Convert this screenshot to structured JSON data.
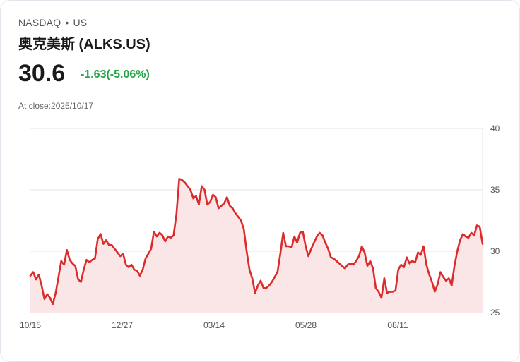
{
  "header": {
    "exchange": "NASDAQ",
    "separator": "•",
    "market": "US",
    "title": "奥克美斯 (ALKS.US)",
    "price": "30.6",
    "change": "-1.63(-5.06%)",
    "close_label": "At close:2025/10/17"
  },
  "colors": {
    "line": "#dd2a2a",
    "fill": "#fbe6e7",
    "change": "#22a447",
    "grid": "#e5e5e5"
  },
  "chart_data": {
    "type": "area",
    "title": "奥克美斯 (ALKS.US)",
    "xlabel": "",
    "ylabel": "",
    "ylim": [
      25,
      40
    ],
    "yticks": [
      25,
      30,
      35,
      40
    ],
    "xticks": [
      "10/15",
      "12/27",
      "03/14",
      "05/28",
      "08/11"
    ],
    "grid": true,
    "y_axis_position": "right",
    "values": [
      28.0,
      28.3,
      27.7,
      28.1,
      27.2,
      26.1,
      26.5,
      26.2,
      25.7,
      26.6,
      27.9,
      29.2,
      28.9,
      30.1,
      29.3,
      29.0,
      28.8,
      27.7,
      27.5,
      28.5,
      29.3,
      29.1,
      29.3,
      29.4,
      31.0,
      31.4,
      30.6,
      30.9,
      30.5,
      30.5,
      30.2,
      29.9,
      29.6,
      29.8,
      28.9,
      28.7,
      28.9,
      28.5,
      28.4,
      28.0,
      28.5,
      29.4,
      29.8,
      30.2,
      31.6,
      31.2,
      31.5,
      31.3,
      30.8,
      31.2,
      31.1,
      31.3,
      33.0,
      35.9,
      35.8,
      35.6,
      35.3,
      35.0,
      34.3,
      34.5,
      33.8,
      35.3,
      35.0,
      33.8,
      34.0,
      34.6,
      34.4,
      33.5,
      33.7,
      33.9,
      34.4,
      33.7,
      33.5,
      33.1,
      32.8,
      32.5,
      31.8,
      30.0,
      28.5,
      27.8,
      26.6,
      27.2,
      27.6,
      27.0,
      27.0,
      27.2,
      27.5,
      27.9,
      28.3,
      29.8,
      31.5,
      30.4,
      30.4,
      30.3,
      31.2,
      30.7,
      31.5,
      31.6,
      30.4,
      29.6,
      30.2,
      30.7,
      31.2,
      31.5,
      31.3,
      30.7,
      30.2,
      29.5,
      29.4,
      29.2,
      29.0,
      28.8,
      28.6,
      28.9,
      29.0,
      28.9,
      29.2,
      29.6,
      30.4,
      29.9,
      28.8,
      29.2,
      28.6,
      27.0,
      26.7,
      26.2,
      27.8,
      26.6,
      26.7,
      26.7,
      26.8,
      28.5,
      28.9,
      28.7,
      29.5,
      29.0,
      29.2,
      29.1,
      29.9,
      29.7,
      30.4,
      28.9,
      28.1,
      27.5,
      26.7,
      27.3,
      28.3,
      27.9,
      27.6,
      27.8,
      27.2,
      28.8,
      30.0,
      30.9,
      31.4,
      31.2,
      31.1,
      31.5,
      31.3,
      32.1,
      32.0,
      30.6
    ]
  }
}
